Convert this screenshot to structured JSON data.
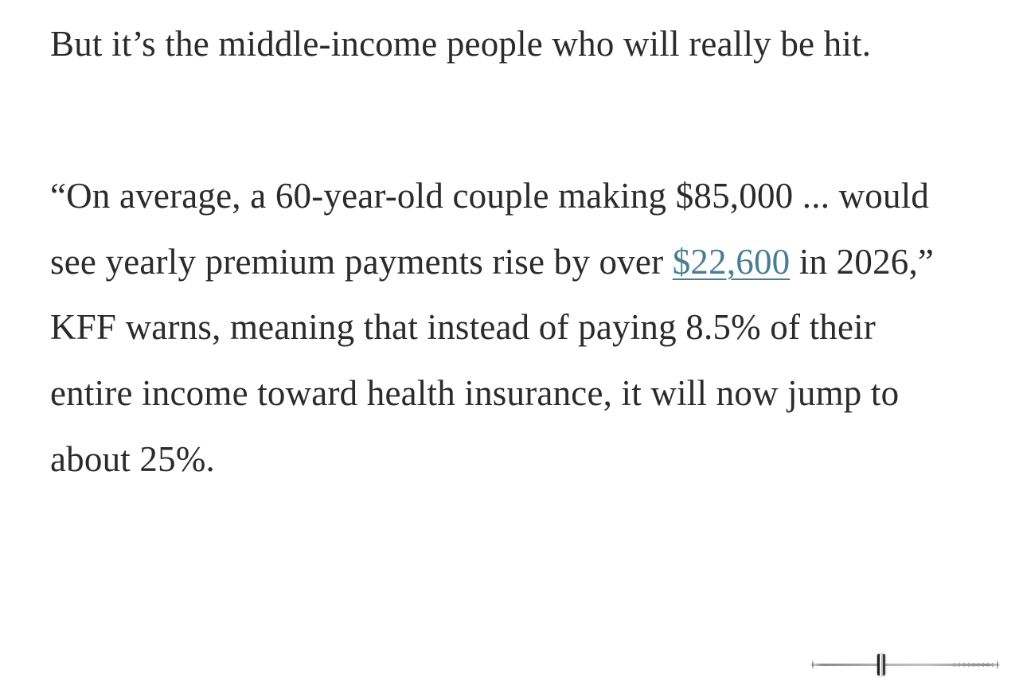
{
  "article": {
    "p1": "But it’s the middle-income people who will really be hit.",
    "p2_before_link": "“On average, a 60-year-old couple making $85,000 ... would see yearly premium payments rise by over ",
    "p2_link_text": "$22,600",
    "p2_after_link": " in 2026,” KFF warns, meaning that instead of paying 8.5% of their entire income toward health insurance, it will now jump to about 25%."
  },
  "colors": {
    "text": "#2b2b2b",
    "link": "#477e92",
    "background": "#ffffff"
  },
  "scrubber": {
    "handle_position_pct": 38
  }
}
